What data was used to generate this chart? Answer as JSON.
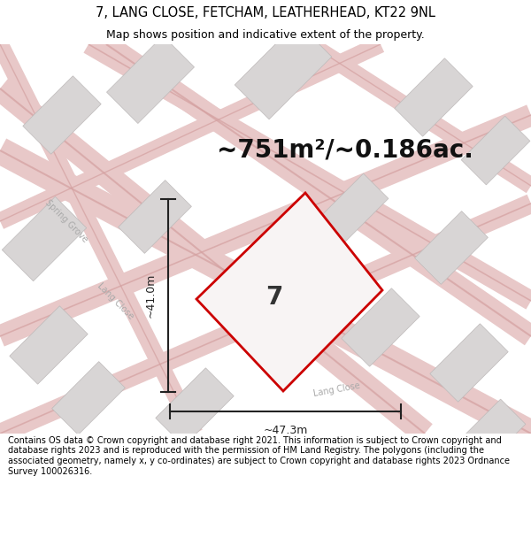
{
  "title": "7, LANG CLOSE, FETCHAM, LEATHERHEAD, KT22 9NL",
  "subtitle": "Map shows position and indicative extent of the property.",
  "area_text": "~751m²/~0.186ac.",
  "plot_number": "7",
  "dim_height": "~41.0m",
  "dim_width": "~47.3m",
  "footer": "Contains OS data © Crown copyright and database right 2021. This information is subject to Crown copyright and database rights 2023 and is reproduced with the permission of HM Land Registry. The polygons (including the associated geometry, namely x, y co-ordinates) are subject to Crown copyright and database rights 2023 Ordnance Survey 100026316.",
  "map_bg": "#f0eeee",
  "road_fill_color": "#e8c8c8",
  "road_edge_color": "#d4a0a0",
  "building_color": "#d8d5d5",
  "building_edge": "#bebaba",
  "plot_color": "#cc0000",
  "plot_fill": "#f5f0f0",
  "dim_line_color": "#222222",
  "title_fontsize": 10.5,
  "subtitle_fontsize": 9,
  "area_fontsize": 20,
  "footer_fontsize": 7,
  "road_label_color": "#aaaaaa",
  "road_label_size": 7
}
